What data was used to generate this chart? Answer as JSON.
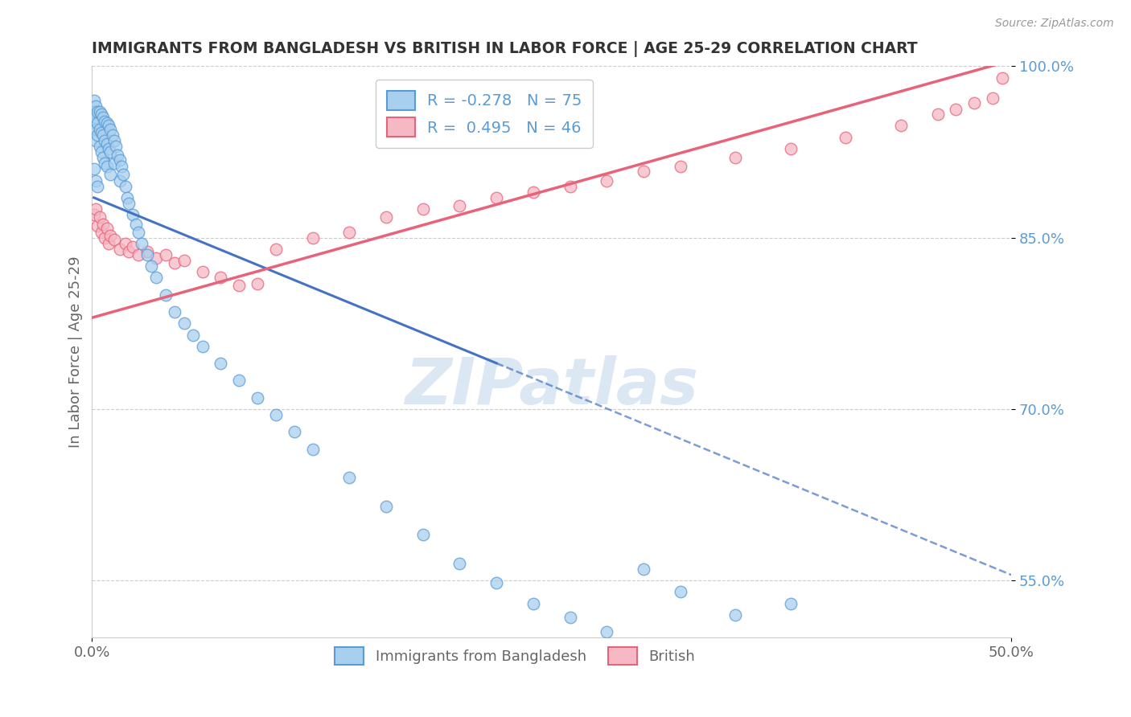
{
  "title": "IMMIGRANTS FROM BANGLADESH VS BRITISH IN LABOR FORCE | AGE 25-29 CORRELATION CHART",
  "source": "Source: ZipAtlas.com",
  "ylabel": "In Labor Force | Age 25-29",
  "legend_labels": [
    "Immigrants from Bangladesh",
    "British"
  ],
  "legend_R": [
    -0.278,
    0.495
  ],
  "legend_N": [
    75,
    46
  ],
  "blue_color": "#A8CFEE",
  "pink_color": "#F5B8C4",
  "blue_edge_color": "#5B9BD5",
  "pink_edge_color": "#E8637A",
  "blue_line_color": "#4472C4",
  "pink_line_color": "#E8637A",
  "watermark": "ZIPatlas",
  "watermark_color": "#C5D8ED",
  "xlim": [
    0.0,
    0.5
  ],
  "ylim": [
    0.5,
    1.0
  ],
  "xtick_labels": [
    "0.0%",
    "50.0%"
  ],
  "ytick_labels": [
    "55.0%",
    "70.0%",
    "85.0%",
    "100.0%"
  ],
  "ytick_values": [
    0.55,
    0.7,
    0.85,
    1.0
  ],
  "xtick_values": [
    0.0,
    0.5
  ],
  "blue_x": [
    0.001,
    0.001,
    0.001,
    0.001,
    0.002,
    0.002,
    0.002,
    0.002,
    0.002,
    0.003,
    0.003,
    0.003,
    0.003,
    0.004,
    0.004,
    0.004,
    0.005,
    0.005,
    0.005,
    0.006,
    0.006,
    0.006,
    0.007,
    0.007,
    0.007,
    0.008,
    0.008,
    0.008,
    0.009,
    0.009,
    0.01,
    0.01,
    0.01,
    0.011,
    0.012,
    0.012,
    0.013,
    0.014,
    0.015,
    0.015,
    0.016,
    0.017,
    0.018,
    0.019,
    0.02,
    0.022,
    0.024,
    0.025,
    0.027,
    0.03,
    0.032,
    0.035,
    0.04,
    0.045,
    0.05,
    0.055,
    0.06,
    0.07,
    0.08,
    0.09,
    0.1,
    0.11,
    0.12,
    0.14,
    0.16,
    0.18,
    0.2,
    0.22,
    0.24,
    0.26,
    0.28,
    0.3,
    0.32,
    0.35,
    0.38
  ],
  "blue_y": [
    0.97,
    0.96,
    0.95,
    0.91,
    0.965,
    0.955,
    0.945,
    0.935,
    0.9,
    0.96,
    0.95,
    0.94,
    0.895,
    0.96,
    0.945,
    0.93,
    0.958,
    0.942,
    0.925,
    0.955,
    0.94,
    0.92,
    0.952,
    0.935,
    0.915,
    0.95,
    0.932,
    0.912,
    0.948,
    0.928,
    0.945,
    0.925,
    0.905,
    0.94,
    0.935,
    0.915,
    0.93,
    0.922,
    0.918,
    0.9,
    0.912,
    0.905,
    0.895,
    0.885,
    0.88,
    0.87,
    0.862,
    0.855,
    0.845,
    0.835,
    0.825,
    0.815,
    0.8,
    0.785,
    0.775,
    0.765,
    0.755,
    0.74,
    0.725,
    0.71,
    0.695,
    0.68,
    0.665,
    0.64,
    0.615,
    0.59,
    0.565,
    0.548,
    0.53,
    0.518,
    0.505,
    0.56,
    0.54,
    0.52,
    0.53
  ],
  "pink_x": [
    0.001,
    0.002,
    0.003,
    0.004,
    0.005,
    0.006,
    0.007,
    0.008,
    0.009,
    0.01,
    0.012,
    0.015,
    0.018,
    0.02,
    0.022,
    0.025,
    0.03,
    0.035,
    0.04,
    0.045,
    0.05,
    0.06,
    0.07,
    0.08,
    0.09,
    0.1,
    0.12,
    0.14,
    0.16,
    0.18,
    0.2,
    0.22,
    0.24,
    0.26,
    0.28,
    0.3,
    0.32,
    0.35,
    0.38,
    0.41,
    0.44,
    0.46,
    0.47,
    0.48,
    0.49,
    0.495
  ],
  "pink_y": [
    0.87,
    0.875,
    0.86,
    0.868,
    0.855,
    0.862,
    0.85,
    0.858,
    0.845,
    0.852,
    0.848,
    0.84,
    0.845,
    0.838,
    0.842,
    0.835,
    0.838,
    0.832,
    0.835,
    0.828,
    0.83,
    0.82,
    0.815,
    0.808,
    0.81,
    0.84,
    0.85,
    0.855,
    0.868,
    0.875,
    0.878,
    0.885,
    0.89,
    0.895,
    0.9,
    0.908,
    0.912,
    0.92,
    0.928,
    0.938,
    0.948,
    0.958,
    0.962,
    0.968,
    0.972,
    0.99
  ],
  "grid_color": "#CCCCCC",
  "background_color": "#FFFFFF",
  "axis_label_color": "#666666",
  "title_color": "#333333",
  "source_color": "#999999",
  "blue_line_solid_end": 0.22,
  "blue_line_x_start": 0.0,
  "blue_line_x_end": 0.5
}
